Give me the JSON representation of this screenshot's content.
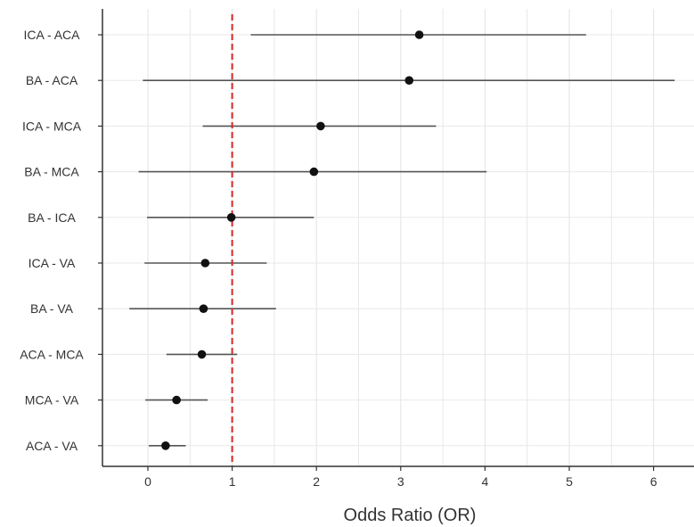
{
  "chart_data": {
    "type": "forest",
    "xlabel": "Odds Ratio (OR)",
    "ylabel": "",
    "xlim": [
      -0.55,
      6.45
    ],
    "xticks": [
      0,
      1,
      2,
      3,
      4,
      5,
      6
    ],
    "reference_line": {
      "x": 1,
      "style": "dashed",
      "color": "#d62728"
    },
    "grid": true,
    "categories": [
      "ICA - ACA",
      "BA - ACA",
      "ICA - MCA",
      "BA - MCA",
      "BA - ICA",
      "ICA - VA",
      "BA - VA",
      "ACA - MCA",
      "MCA - VA",
      "ACA - VA"
    ],
    "estimates": [
      3.22,
      3.1,
      2.05,
      1.97,
      0.99,
      0.68,
      0.66,
      0.64,
      0.34,
      0.21
    ],
    "ci_lower": [
      1.22,
      -0.06,
      0.65,
      -0.11,
      -0.01,
      -0.04,
      -0.22,
      0.22,
      -0.03,
      0.01
    ],
    "ci_upper": [
      5.2,
      6.25,
      3.42,
      4.02,
      1.97,
      1.41,
      1.52,
      1.06,
      0.71,
      0.45
    ]
  }
}
